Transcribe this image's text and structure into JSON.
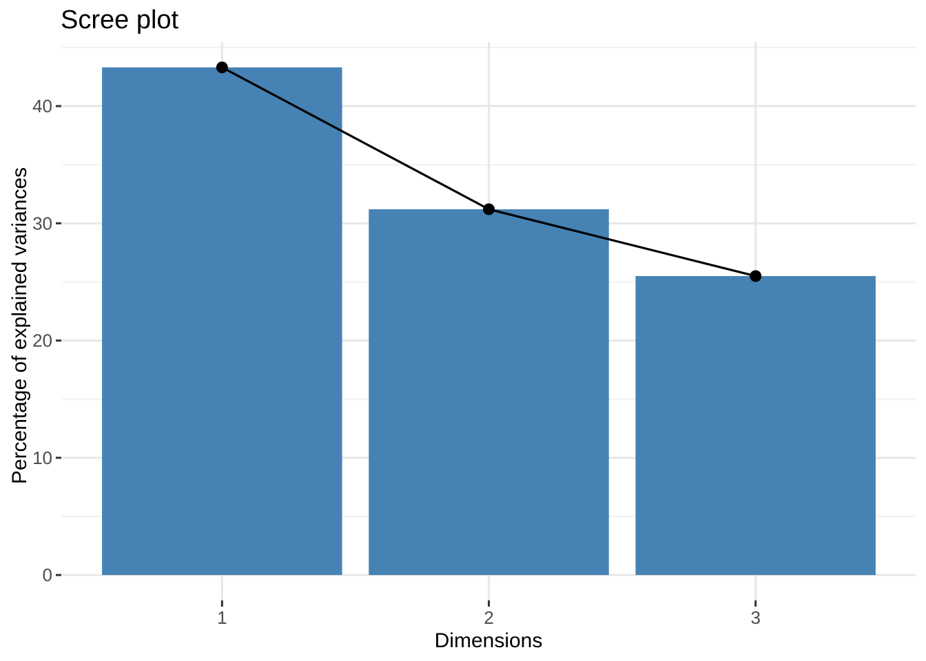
{
  "chart_data": {
    "type": "bar",
    "overlay": "line",
    "title": "Scree plot",
    "xlabel": "Dimensions",
    "ylabel": "Percentage of explained variances",
    "categories": [
      "1",
      "2",
      "3"
    ],
    "values": [
      43.3,
      31.2,
      25.5
    ],
    "series": [
      {
        "name": "explained-variance-bars",
        "type": "bar",
        "values": [
          43.3,
          31.2,
          25.5
        ]
      },
      {
        "name": "explained-variance-line",
        "type": "line",
        "values": [
          43.3,
          31.2,
          25.5
        ]
      }
    ],
    "ylim": [
      0,
      45.5
    ],
    "yticks": [
      0,
      10,
      20,
      30,
      40
    ],
    "yticks_minor": [
      5,
      15,
      25,
      35,
      45
    ],
    "grid": "major+minor",
    "legend": "none",
    "colors": {
      "bar_fill": "#4682B4",
      "line": "#000000",
      "point": "#000000",
      "title_text": "#000000",
      "axis_title_text": "#000000",
      "tick_label_text": "#4D4D4D",
      "tick_mark": "#333333",
      "grid_major": "#E7E7E7",
      "grid_minor": "#F1F1F1",
      "panel_background": "#FFFFFF"
    }
  }
}
